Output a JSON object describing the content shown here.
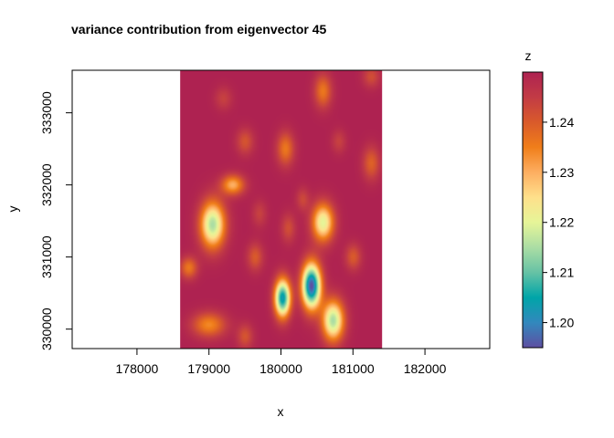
{
  "chart_data": {
    "type": "heatmap",
    "title": "variance contribution from eigenvector 45",
    "xlabel": "x",
    "ylabel": "y",
    "xlim": [
      177100,
      182900
    ],
    "ylim": [
      329730,
      333590
    ],
    "raster_extent": {
      "x": [
        178600,
        181400
      ],
      "y": [
        329730,
        333590
      ]
    },
    "x_ticks": [
      178000,
      179000,
      180000,
      181000,
      182000
    ],
    "x_tick_labels": [
      "178000",
      "179000",
      "180000",
      "181000",
      "182000"
    ],
    "y_ticks": [
      330000,
      331000,
      332000,
      333000
    ],
    "y_tick_labels": [
      "330000",
      "331000",
      "332000",
      "333000"
    ],
    "legend": {
      "title": "z",
      "min": 1.195,
      "max": 1.25,
      "ticks": [
        1.2,
        1.21,
        1.22,
        1.23,
        1.24
      ],
      "tick_labels": [
        "1.20",
        "1.21",
        "1.22",
        "1.23",
        "1.24"
      ]
    },
    "colors": [
      "#5E4FA2",
      "#3288BD",
      "#00A5A8",
      "#66C2A5",
      "#ABDDA4",
      "#E6F598",
      "#FEE08B",
      "#FDAE61",
      "#F07E1A",
      "#D95A2B",
      "#C23B45",
      "#AE2251"
    ],
    "background_value": 1.25,
    "blobs": [
      {
        "x": 180420,
        "y": 330600,
        "rx": 130,
        "ry": 310,
        "depth": 0.055
      },
      {
        "x": 180020,
        "y": 330430,
        "rx": 110,
        "ry": 260,
        "depth": 0.047
      },
      {
        "x": 180720,
        "y": 330120,
        "rx": 150,
        "ry": 280,
        "depth": 0.035
      },
      {
        "x": 179050,
        "y": 331450,
        "rx": 170,
        "ry": 320,
        "depth": 0.035
      },
      {
        "x": 180580,
        "y": 331480,
        "rx": 150,
        "ry": 260,
        "depth": 0.03
      },
      {
        "x": 179330,
        "y": 332000,
        "rx": 160,
        "ry": 140,
        "depth": 0.02
      },
      {
        "x": 179000,
        "y": 330060,
        "rx": 230,
        "ry": 170,
        "depth": 0.016
      },
      {
        "x": 180060,
        "y": 332500,
        "rx": 120,
        "ry": 230,
        "depth": 0.014
      },
      {
        "x": 180580,
        "y": 333300,
        "rx": 120,
        "ry": 230,
        "depth": 0.014
      },
      {
        "x": 181250,
        "y": 332300,
        "rx": 120,
        "ry": 230,
        "depth": 0.011
      },
      {
        "x": 179500,
        "y": 332600,
        "rx": 120,
        "ry": 180,
        "depth": 0.009
      },
      {
        "x": 178720,
        "y": 330850,
        "rx": 120,
        "ry": 150,
        "depth": 0.014
      },
      {
        "x": 179640,
        "y": 331000,
        "rx": 110,
        "ry": 190,
        "depth": 0.01
      },
      {
        "x": 180100,
        "y": 331400,
        "rx": 100,
        "ry": 200,
        "depth": 0.008
      },
      {
        "x": 179500,
        "y": 329900,
        "rx": 110,
        "ry": 170,
        "depth": 0.009
      },
      {
        "x": 181000,
        "y": 331000,
        "rx": 110,
        "ry": 180,
        "depth": 0.01
      },
      {
        "x": 180300,
        "y": 331800,
        "rx": 90,
        "ry": 160,
        "depth": 0.007
      },
      {
        "x": 179200,
        "y": 333200,
        "rx": 120,
        "ry": 160,
        "depth": 0.006
      },
      {
        "x": 181250,
        "y": 333500,
        "rx": 120,
        "ry": 150,
        "depth": 0.008
      },
      {
        "x": 180800,
        "y": 332600,
        "rx": 100,
        "ry": 160,
        "depth": 0.006
      },
      {
        "x": 179700,
        "y": 331600,
        "rx": 100,
        "ry": 180,
        "depth": 0.006
      }
    ]
  }
}
